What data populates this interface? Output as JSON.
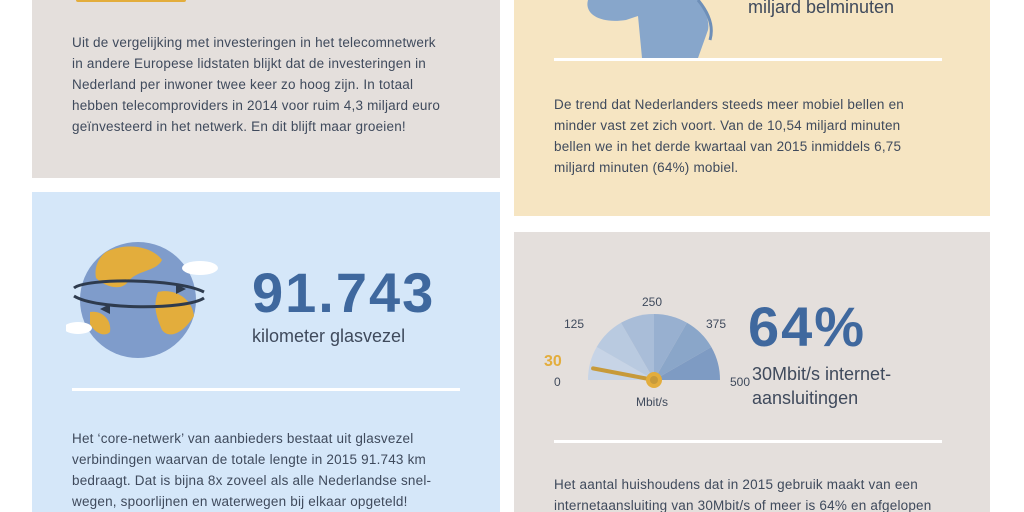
{
  "top_left": {
    "paragraph_lines": [
      "Uit de vergelijking met investeringen in het telecomnetwerk",
      "in andere Europese lidstaten blijkt dat de investeringen in",
      "Nederland per inwoner twee keer zo hoog zijn. In totaal",
      "hebben telecomproviders in 2014 voor ruim 4,3 miljard euro",
      "geïnvesteerd in het netwerk. En dit blijft maar groeien!"
    ]
  },
  "top_right": {
    "label": "miljard belminuten",
    "paragraph_lines": [
      "De trend dat Nederlanders steeds meer mobiel bellen en",
      "minder vast zet zich voort. Van de 10,54 miljard minuten",
      "bellen we in het derde kwartaal van 2015 inmiddels 6,75",
      "miljard minuten (64%) mobiel."
    ]
  },
  "bottom_left": {
    "number": "91.743",
    "label": "kilometer glasvezel",
    "paragraph_lines": [
      "Het ‘core-netwerk’ van aanbieders bestaat uit glasvezel",
      "verbindingen waarvan de totale lengte in 2015 91.743 km",
      "bedraagt. Dat is bijna 8x zoveel als alle Nederlandse snel-",
      "wegen, spoorlijnen en waterwegen bij elkaar opgeteld!"
    ]
  },
  "bottom_right": {
    "number": "64%",
    "label_lines": [
      "30Mbit/s internet-",
      "aansluitingen"
    ],
    "gauge": {
      "ticks": [
        "0",
        "125",
        "250",
        "375",
        "500"
      ],
      "value_label": "30",
      "value": 30,
      "max": 500,
      "unit": "Mbit/s"
    },
    "paragraph_lines": [
      "Het aantal huishoudens dat in 2015 gebruik maakt van een",
      "internetaansluiting van 30Mbit/s of meer is 64% en afgelopen"
    ]
  },
  "colors": {
    "accent_blue": "#3f689e",
    "accent_gold": "#e3ad3c",
    "panel_grey": "#e4dfdc",
    "panel_cream": "#f6e5c2",
    "panel_blue": "#d5e7f9"
  }
}
